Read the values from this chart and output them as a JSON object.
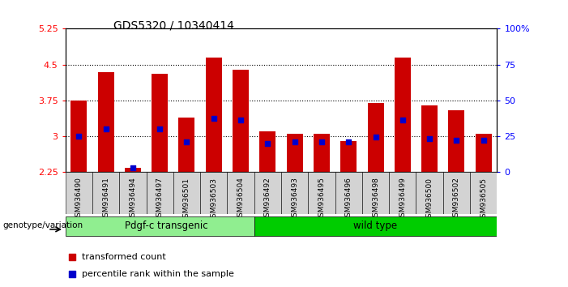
{
  "title": "GDS5320 / 10340414",
  "samples": [
    "GSM936490",
    "GSM936491",
    "GSM936494",
    "GSM936497",
    "GSM936501",
    "GSM936503",
    "GSM936504",
    "GSM936492",
    "GSM936493",
    "GSM936495",
    "GSM936496",
    "GSM936498",
    "GSM936499",
    "GSM936500",
    "GSM936502",
    "GSM936505"
  ],
  "red_values": [
    3.75,
    4.35,
    2.35,
    4.3,
    3.4,
    4.65,
    4.4,
    3.1,
    3.05,
    3.05,
    2.9,
    3.7,
    4.65,
    3.65,
    3.55,
    3.05
  ],
  "blue_values": [
    3.0,
    3.15,
    2.35,
    3.15,
    2.88,
    3.38,
    3.35,
    2.85,
    2.88,
    2.88,
    2.88,
    2.98,
    3.35,
    2.95,
    2.92,
    2.92
  ],
  "groups": [
    {
      "label": "Pdgf-c transgenic",
      "start": 0,
      "end": 7,
      "color": "#90EE90"
    },
    {
      "label": "wild type",
      "start": 7,
      "end": 16,
      "color": "#00CC00"
    }
  ],
  "ylim_left": [
    2.25,
    5.25
  ],
  "yticks_left": [
    2.25,
    3.0,
    3.75,
    4.5,
    5.25
  ],
  "ytick_labels_left": [
    "2.25",
    "3",
    "3.75",
    "4.5",
    "5.25"
  ],
  "yticks_right": [
    0,
    25,
    50,
    75,
    100
  ],
  "ytick_labels_right": [
    "0",
    "25",
    "50",
    "75",
    "100%"
  ],
  "bar_color": "#CC0000",
  "marker_color": "#0000CC",
  "bar_width": 0.6,
  "background_color": "#ffffff",
  "grid_dotted_at": [
    3.0,
    3.75,
    4.5
  ],
  "group_label": "genotype/variation",
  "legend_items": [
    "transformed count",
    "percentile rank within the sample"
  ]
}
